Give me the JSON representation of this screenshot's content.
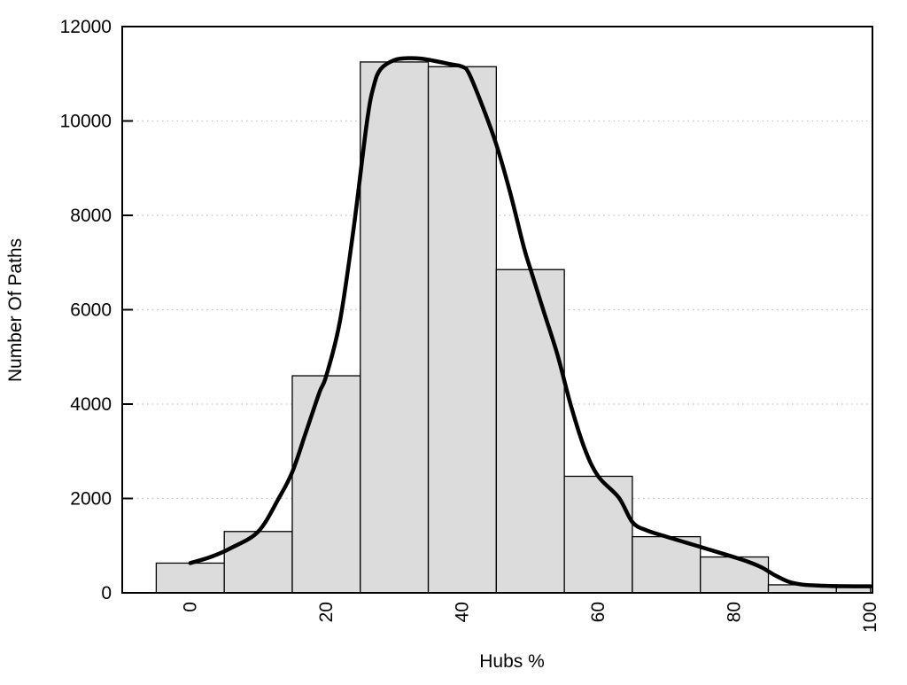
{
  "figure": {
    "background": "#ffffff"
  },
  "chart_data": {
    "type": "bar",
    "subtype": "histogram-with-density-curve",
    "title": "",
    "xlabel": "Hubs %",
    "ylabel": "Number Of Paths",
    "xlim": [
      -10,
      100.3
    ],
    "ylim": [
      0,
      12000
    ],
    "grid": "horizontal-dotted",
    "legend": "none",
    "x_tick_values": [
      0,
      20,
      40,
      60,
      80,
      100
    ],
    "x_tick_labels": [
      "0",
      "20",
      "40",
      "60",
      "80",
      "100"
    ],
    "x_tick_label_rotation_deg": -90,
    "y_tick_values": [
      0,
      2000,
      4000,
      6000,
      8000,
      10000,
      12000
    ],
    "y_tick_labels": [
      "0",
      "2000",
      "4000",
      "6000",
      "8000",
      "10000",
      "12000"
    ],
    "grid_y_values": [
      2000,
      4000,
      6000,
      8000,
      10000
    ],
    "bin_width": 10,
    "bars": [
      {
        "x0": -5,
        "x1": 5,
        "value": 630
      },
      {
        "x0": 5,
        "x1": 15,
        "value": 1300
      },
      {
        "x0": 15,
        "x1": 25,
        "value": 4600
      },
      {
        "x0": 25,
        "x1": 35,
        "value": 11250
      },
      {
        "x0": 35,
        "x1": 45,
        "value": 11150
      },
      {
        "x0": 45,
        "x1": 55,
        "value": 6850
      },
      {
        "x0": 55,
        "x1": 65,
        "value": 2470
      },
      {
        "x0": 65,
        "x1": 75,
        "value": 1190
      },
      {
        "x0": 75,
        "x1": 85,
        "value": 760
      },
      {
        "x0": 85,
        "x1": 95,
        "value": 170
      },
      {
        "x0": 95,
        "x1": 100,
        "value": 150
      }
    ],
    "curve_points": [
      [
        0,
        630
      ],
      [
        3,
        760
      ],
      [
        6,
        950
      ],
      [
        10,
        1300
      ],
      [
        13,
        2000
      ],
      [
        15,
        2560
      ],
      [
        17,
        3400
      ],
      [
        19,
        4250
      ],
      [
        20,
        4600
      ],
      [
        22,
        5750
      ],
      [
        24,
        7700
      ],
      [
        26,
        10000
      ],
      [
        27,
        10750
      ],
      [
        28,
        11100
      ],
      [
        30,
        11290
      ],
      [
        32,
        11330
      ],
      [
        34,
        11320
      ],
      [
        36,
        11270
      ],
      [
        38,
        11210
      ],
      [
        40,
        11150
      ],
      [
        41,
        11000
      ],
      [
        43,
        10300
      ],
      [
        45,
        9500
      ],
      [
        47,
        8500
      ],
      [
        49,
        7350
      ],
      [
        50,
        6870
      ],
      [
        52,
        5950
      ],
      [
        54,
        5040
      ],
      [
        56,
        3950
      ],
      [
        58,
        3050
      ],
      [
        60,
        2465
      ],
      [
        63,
        2020
      ],
      [
        65,
        1500
      ],
      [
        67,
        1330
      ],
      [
        70,
        1190
      ],
      [
        73,
        1060
      ],
      [
        76,
        930
      ],
      [
        80,
        755
      ],
      [
        82,
        660
      ],
      [
        84,
        540
      ],
      [
        86,
        370
      ],
      [
        88,
        235
      ],
      [
        90,
        175
      ],
      [
        93,
        150
      ],
      [
        96,
        140
      ],
      [
        100,
        138
      ]
    ],
    "colors": {
      "bar_fill": "#dcdcdc",
      "bar_stroke": "#000000",
      "curve": "#000000",
      "grid": "#c6c6c6",
      "axis": "#000000",
      "text": "#000000",
      "background": "#ffffff"
    }
  }
}
